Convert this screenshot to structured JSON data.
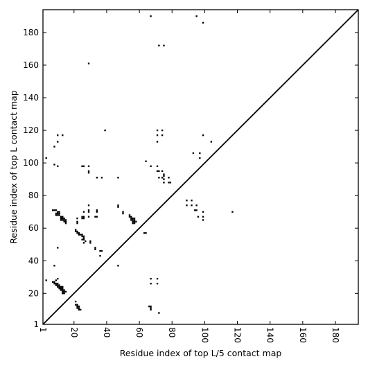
{
  "chart_data": {
    "type": "heatmap",
    "title": "",
    "xlabel": "Residue index of top L/5 contact map",
    "ylabel": "Residue index of top L contact map",
    "xlim": [
      1,
      194
    ],
    "ylim": [
      1,
      194
    ],
    "xticks": [
      1,
      20,
      40,
      60,
      80,
      100,
      120,
      140,
      160,
      180
    ],
    "yticks": [
      1,
      20,
      40,
      60,
      80,
      100,
      120,
      140,
      160,
      180
    ],
    "grid": false,
    "diagonal": true,
    "contacts": [
      [
        67,
        190
      ],
      [
        95,
        190
      ],
      [
        99,
        186
      ],
      [
        72,
        172
      ],
      [
        75,
        172
      ],
      [
        29,
        161
      ],
      [
        39,
        120
      ],
      [
        71,
        120
      ],
      [
        74,
        120
      ],
      [
        71,
        117
      ],
      [
        74,
        117
      ],
      [
        10,
        117
      ],
      [
        13,
        117
      ],
      [
        99,
        117
      ],
      [
        71,
        113
      ],
      [
        10,
        113
      ],
      [
        104,
        113
      ],
      [
        8,
        110
      ],
      [
        93,
        106
      ],
      [
        97,
        106
      ],
      [
        97,
        103
      ],
      [
        3,
        103
      ],
      [
        64,
        101
      ],
      [
        8,
        99
      ],
      [
        10,
        98
      ],
      [
        67,
        98
      ],
      [
        71,
        98
      ],
      [
        25,
        98
      ],
      [
        26,
        98
      ],
      [
        29,
        98
      ],
      [
        29,
        95
      ],
      [
        29,
        94
      ],
      [
        71,
        95
      ],
      [
        72,
        95
      ],
      [
        74,
        95
      ],
      [
        75,
        93
      ],
      [
        75,
        92
      ],
      [
        74,
        91
      ],
      [
        34,
        91
      ],
      [
        37,
        91
      ],
      [
        47,
        91
      ],
      [
        72,
        91
      ],
      [
        74,
        91
      ],
      [
        75,
        90
      ],
      [
        78,
        91
      ],
      [
        75,
        88
      ],
      [
        78,
        88
      ],
      [
        79,
        88
      ],
      [
        89,
        77
      ],
      [
        92,
        77
      ],
      [
        89,
        74
      ],
      [
        92,
        74
      ],
      [
        95,
        74
      ],
      [
        94,
        71
      ],
      [
        95,
        71
      ],
      [
        99,
        70
      ],
      [
        117,
        70
      ],
      [
        96,
        67
      ],
      [
        99,
        67
      ],
      [
        99,
        65
      ],
      [
        29,
        74
      ],
      [
        47,
        74
      ],
      [
        47,
        73
      ],
      [
        29,
        71
      ],
      [
        34,
        71
      ],
      [
        29,
        70
      ],
      [
        34,
        70
      ],
      [
        26,
        70
      ],
      [
        50,
        70
      ],
      [
        50,
        69
      ],
      [
        7,
        71
      ],
      [
        8,
        71
      ],
      [
        9,
        71
      ],
      [
        10,
        70
      ],
      [
        11,
        70
      ],
      [
        9,
        69
      ],
      [
        10,
        69
      ],
      [
        11,
        69
      ],
      [
        9,
        68
      ],
      [
        10,
        68
      ],
      [
        11,
        68
      ],
      [
        12,
        67
      ],
      [
        13,
        67
      ],
      [
        12,
        66
      ],
      [
        13,
        66
      ],
      [
        14,
        66
      ],
      [
        12,
        65
      ],
      [
        13,
        65
      ],
      [
        14,
        65
      ],
      [
        15,
        65
      ],
      [
        14,
        64
      ],
      [
        15,
        64
      ],
      [
        15,
        63
      ],
      [
        25,
        67
      ],
      [
        26,
        67
      ],
      [
        25,
        66
      ],
      [
        26,
        66
      ],
      [
        29,
        67
      ],
      [
        33,
        67
      ],
      [
        34,
        67
      ],
      [
        22,
        66
      ],
      [
        22,
        64
      ],
      [
        22,
        63
      ],
      [
        54,
        68
      ],
      [
        54,
        67
      ],
      [
        55,
        67
      ],
      [
        55,
        66
      ],
      [
        56,
        66
      ],
      [
        57,
        66
      ],
      [
        55,
        65
      ],
      [
        56,
        65
      ],
      [
        57,
        65
      ],
      [
        56,
        64
      ],
      [
        57,
        64
      ],
      [
        58,
        64
      ],
      [
        56,
        63
      ],
      [
        57,
        63
      ],
      [
        21,
        59
      ],
      [
        21,
        58
      ],
      [
        22,
        58
      ],
      [
        22,
        57
      ],
      [
        23,
        57
      ],
      [
        23,
        56
      ],
      [
        24,
        56
      ],
      [
        25,
        56
      ],
      [
        25,
        55
      ],
      [
        26,
        55
      ],
      [
        26,
        54
      ],
      [
        25,
        53
      ],
      [
        26,
        53
      ],
      [
        26,
        51
      ],
      [
        27,
        52
      ],
      [
        63,
        57
      ],
      [
        64,
        57
      ],
      [
        30,
        52
      ],
      [
        30,
        51
      ],
      [
        33,
        47
      ],
      [
        33,
        48
      ],
      [
        36,
        46
      ],
      [
        37,
        46
      ],
      [
        36,
        43
      ],
      [
        47,
        37
      ],
      [
        8,
        37
      ],
      [
        10,
        48
      ],
      [
        3,
        28
      ],
      [
        7,
        27
      ],
      [
        8,
        27
      ],
      [
        9,
        28
      ],
      [
        8,
        26
      ],
      [
        9,
        26
      ],
      [
        10,
        26
      ],
      [
        10,
        29
      ],
      [
        9,
        25
      ],
      [
        10,
        25
      ],
      [
        11,
        25
      ],
      [
        10,
        24
      ],
      [
        11,
        24
      ],
      [
        12,
        24
      ],
      [
        13,
        24
      ],
      [
        11,
        23
      ],
      [
        12,
        23
      ],
      [
        13,
        23
      ],
      [
        12,
        22
      ],
      [
        13,
        22
      ],
      [
        14,
        22
      ],
      [
        13,
        21
      ],
      [
        14,
        21
      ],
      [
        15,
        21
      ],
      [
        13,
        20
      ],
      [
        14,
        20
      ],
      [
        67,
        29
      ],
      [
        71,
        29
      ],
      [
        67,
        26
      ],
      [
        71,
        26
      ],
      [
        21,
        15
      ],
      [
        21,
        13
      ],
      [
        22,
        13
      ],
      [
        22,
        12
      ],
      [
        23,
        12
      ],
      [
        22,
        11
      ],
      [
        23,
        11
      ],
      [
        23,
        10
      ],
      [
        24,
        10
      ],
      [
        66,
        12
      ],
      [
        67,
        12
      ],
      [
        67,
        11
      ],
      [
        67,
        10
      ],
      [
        72,
        8
      ]
    ]
  }
}
